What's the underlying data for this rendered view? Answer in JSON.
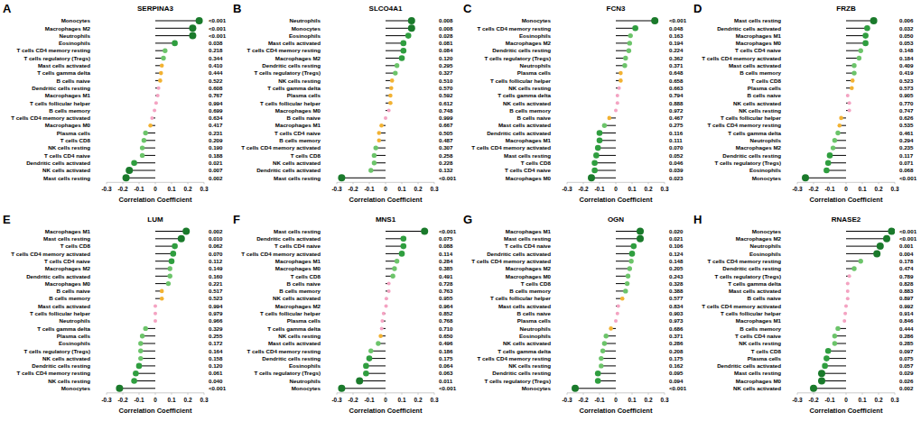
{
  "chart_data": [
    {
      "type": "lollipop",
      "orientation": "horizontal",
      "label": "A",
      "title": "SERPINA3",
      "x_label": "Correlation Coefficient",
      "xlim": [
        -0.3,
        0.3
      ],
      "xticks": [
        -0.3,
        -0.2,
        -0.1,
        0,
        0.1,
        0.2,
        0.3
      ],
      "categories": [
        "Monocytes",
        "Macrophages M2",
        "Neutrophils",
        "Eosinophils",
        "T cells CD4 memory resting",
        "T cells regulatory (Tregs)",
        "Mast cells activated",
        "T cells gamma delta",
        "B cells naive",
        "Dendritic cells resting",
        "Macrophages M1",
        "T cells follicular helper",
        "B cells memory",
        "T cells CD4 memory activated",
        "Macrophages M0",
        "Plasma cells",
        "T cells CD8",
        "NK cells resting",
        "T cells CD4 naive",
        "Dendritic cells activated",
        "NK cells activated",
        "Mast cells resting"
      ],
      "values": [
        0.27,
        0.23,
        0.23,
        0.12,
        0.06,
        0.05,
        0.04,
        0.035,
        0.03,
        0.02,
        0.015,
        0.005,
        -0.005,
        -0.02,
        -0.03,
        -0.06,
        -0.07,
        -0.08,
        -0.08,
        -0.13,
        -0.16,
        -0.18
      ],
      "p_values": [
        "<0.001",
        "<0.001",
        "<0.001",
        "0.038",
        "0.218",
        "0.344",
        "0.410",
        "0.444",
        "0.522",
        "0.608",
        "0.767",
        "0.994",
        "0.699",
        "0.634",
        "0.417",
        "0.231",
        "0.209",
        "0.190",
        "0.188",
        "0.021",
        "0.007",
        "0.002"
      ]
    },
    {
      "type": "lollipop",
      "orientation": "horizontal",
      "label": "B",
      "title": "SLCO4A1",
      "x_label": "Correlation Coefficient",
      "xlim": [
        -0.3,
        0.3
      ],
      "xticks": [
        -0.3,
        -0.2,
        -0.1,
        0,
        0.1,
        0.2,
        0.3
      ],
      "categories": [
        "Neutrophils",
        "Monocytes",
        "Eosinophils",
        "Mast cells activated",
        "T cells CD4 memory resting",
        "Macrophages M2",
        "Dendritic cells resting",
        "T cells regulatory (Tregs)",
        "NK cells resting",
        "T cells gamma delta",
        "Plasma cells",
        "T cells follicular helper",
        "Macrophages M0",
        "B cells naive",
        "Macrophages M1",
        "T cells CD4 naive",
        "B cells memory",
        "T cells CD4 memory activated",
        "T cells CD8",
        "NK cells activated",
        "Dendritic cells activated",
        "Mast cells resting"
      ],
      "values": [
        0.16,
        0.16,
        0.14,
        0.11,
        0.11,
        0.1,
        0.07,
        0.06,
        0.04,
        0.035,
        0.03,
        0.03,
        0.02,
        0.0,
        -0.025,
        -0.04,
        -0.04,
        -0.06,
        -0.07,
        -0.07,
        -0.09,
        -0.27
      ],
      "p_values": [
        "0.008",
        "0.008",
        "0.028",
        "0.081",
        "0.084",
        "0.120",
        "0.295",
        "0.327",
        "0.510",
        "0.570",
        "0.592",
        "0.612",
        "0.748",
        "0.999",
        "0.667",
        "0.505",
        "0.487",
        "0.307",
        "0.258",
        "0.228",
        "0.132",
        "<0.001"
      ]
    },
    {
      "type": "lollipop",
      "orientation": "horizontal",
      "label": "C",
      "title": "FCN3",
      "x_label": "Correlation Coefficient",
      "xlim": [
        -0.3,
        0.3
      ],
      "xticks": [
        -0.3,
        -0.2,
        -0.1,
        0,
        0.1,
        0.2,
        0.3
      ],
      "categories": [
        "Monocytes",
        "T cells CD4 memory resting",
        "Eosinophils",
        "Macrophages M2",
        "Dendritic cells resting",
        "T cells regulatory (Tregs)",
        "Neutrophils",
        "Plasma cells",
        "T cells follicular helper",
        "NK cells resting",
        "T cells gamma delta",
        "NK cells activated",
        "B cells memory",
        "B cells naive",
        "Mast cells activated",
        "Dendritic cells activated",
        "Macrophages M1",
        "T cells CD4 memory activated",
        "Mast cells resting",
        "T cells CD8",
        "T cells CD4 naive",
        "Macrophages M0"
      ],
      "values": [
        0.24,
        0.12,
        0.09,
        0.085,
        0.08,
        0.06,
        0.055,
        0.03,
        0.03,
        0.02,
        0.01,
        0.01,
        0.0,
        -0.04,
        -0.07,
        -0.1,
        -0.1,
        -0.11,
        -0.12,
        -0.13,
        -0.13,
        -0.15
      ],
      "p_values": [
        "<0.001",
        "0.048",
        "0.163",
        "0.194",
        "0.224",
        "0.362",
        "0.371",
        "0.648",
        "0.658",
        "0.663",
        "0.794",
        "0.888",
        "0.972",
        "0.467",
        "0.275",
        "0.116",
        "0.111",
        "0.070",
        "0.052",
        "0.046",
        "0.039",
        "0.023"
      ]
    },
    {
      "type": "lollipop",
      "orientation": "horizontal",
      "label": "D",
      "title": "FRZB",
      "x_label": "Correlation Coefficient",
      "xlim": [
        -0.3,
        0.3
      ],
      "xticks": [
        -0.3,
        -0.2,
        -0.1,
        0,
        0.1,
        0.2,
        0.3
      ],
      "categories": [
        "Mast cells resting",
        "Dendritic cells activated",
        "Macrophages M1",
        "Macrophages M0",
        "T cells CD4 naive",
        "T cells CD4 memory activated",
        "Mast cells activated",
        "B cells memory",
        "T cells CD8",
        "Plasma cells",
        "B cells naive",
        "NK cells activated",
        "NK cells resting",
        "T cells follicular helper",
        "T cells CD4 memory resting",
        "T cells gamma delta",
        "Neutrophils",
        "Macrophages M2",
        "Dendritic cells resting",
        "T cells regulatory (Tregs)",
        "Eosinophils",
        "Monocytes"
      ],
      "values": [
        0.17,
        0.13,
        0.12,
        0.12,
        0.09,
        0.08,
        0.05,
        0.05,
        0.04,
        0.035,
        0.01,
        0.02,
        0.02,
        -0.03,
        -0.04,
        -0.05,
        -0.07,
        -0.08,
        -0.1,
        -0.11,
        -0.12,
        -0.25
      ],
      "p_values": [
        "0.006",
        "0.032",
        "0.050",
        "0.053",
        "0.148",
        "0.184",
        "0.409",
        "0.419",
        "0.523",
        "0.573",
        "0.905",
        "0.770",
        "0.747",
        "0.626",
        "0.535",
        "0.461",
        "0.294",
        "0.235",
        "0.117",
        "0.071",
        "0.068",
        "<0.001"
      ]
    },
    {
      "type": "lollipop",
      "orientation": "horizontal",
      "label": "E",
      "title": "LUM",
      "x_label": "Correlation Coefficient",
      "xlim": [
        -0.3,
        0.3
      ],
      "xticks": [
        -0.3,
        -0.2,
        -0.1,
        0,
        0.1,
        0.2,
        0.3
      ],
      "categories": [
        "Macrophages M1",
        "Mast cells resting",
        "T cells CD8",
        "T cells CD4 memory activated",
        "T cells CD4 naive",
        "Macrophages M2",
        "Dendritic cells activated",
        "Macrophages M0",
        "B cells naive",
        "B cells memory",
        "Mast cells activated",
        "T cells follicular helper",
        "Neutrophils",
        "T cells gamma delta",
        "Plasma cells",
        "Eosinophils",
        "T cells regulatory (Tregs)",
        "NK cells activated",
        "Dendritic cells resting",
        "T cells CD4 memory resting",
        "NK cells resting",
        "Monocytes"
      ],
      "values": [
        0.19,
        0.16,
        0.12,
        0.11,
        0.1,
        0.09,
        0.09,
        0.08,
        0.04,
        0.04,
        0.0,
        0.0,
        0.0,
        -0.06,
        -0.08,
        -0.09,
        -0.09,
        -0.09,
        -0.1,
        -0.12,
        -0.13,
        -0.22
      ],
      "p_values": [
        "0.002",
        "0.010",
        "0.062",
        "0.070",
        "0.112",
        "0.149",
        "0.160",
        "0.221",
        "0.517",
        "0.523",
        "0.994",
        "0.979",
        "0.966",
        "0.329",
        "0.255",
        "0.172",
        "0.164",
        "0.158",
        "0.120",
        "0.061",
        "0.040",
        "<0.001"
      ]
    },
    {
      "type": "lollipop",
      "orientation": "horizontal",
      "label": "F",
      "title": "MNS1",
      "x_label": "Correlation Coefficient",
      "xlim": [
        -0.3,
        0.3
      ],
      "xticks": [
        -0.3,
        -0.2,
        -0.1,
        0,
        0.1,
        0.2,
        0.3
      ],
      "categories": [
        "Mast cells resting",
        "Dendritic cells activated",
        "T cells CD4 naive",
        "T cells CD4 memory activated",
        "Macrophages M1",
        "Macrophages M0",
        "T cells CD8",
        "B cells naive",
        "B cells memory",
        "NK cells activated",
        "Macrophages M2",
        "T cells follicular helper",
        "Plasma cells",
        "T cells gamma delta",
        "NK cells resting",
        "Mast cells activated",
        "T cells CD4 memory resting",
        "Dendritic cells resting",
        "Eosinophils",
        "T cells regulatory (Tregs)",
        "Neutrophils",
        "Monocytes"
      ],
      "values": [
        0.24,
        0.11,
        0.11,
        0.1,
        0.07,
        0.055,
        0.045,
        0.02,
        0.02,
        0.005,
        0.003,
        -0.012,
        -0.02,
        -0.024,
        -0.03,
        -0.045,
        -0.09,
        -0.1,
        -0.12,
        -0.12,
        -0.16,
        -0.27
      ],
      "p_values": [
        "<0.001",
        "0.075",
        "0.088",
        "0.114",
        "0.284",
        "0.385",
        "0.491",
        "0.728",
        "0.763",
        "0.955",
        "0.964",
        "0.852",
        "0.768",
        "0.710",
        "0.650",
        "0.496",
        "0.186",
        "0.175",
        "0.064",
        "0.063",
        "0.011",
        "<0.001"
      ]
    },
    {
      "type": "lollipop",
      "orientation": "horizontal",
      "label": "G",
      "title": "OGN",
      "x_label": "Correlation Coefficient",
      "xlim": [
        -0.3,
        0.3
      ],
      "xticks": [
        -0.3,
        -0.2,
        -0.1,
        0,
        0.1,
        0.2,
        0.3
      ],
      "categories": [
        "Macrophages M1",
        "Mast cells resting",
        "T cells CD4 naive",
        "Dendritic cells activated",
        "T cells CD4 memory activated",
        "Macrophages M2",
        "Macrophages M0",
        "T cells CD8",
        "B cells memory",
        "T cells follicular helper",
        "Mast cells activated",
        "B cells naive",
        "Plasma cells",
        "Neutrophils",
        "Eosinophils",
        "NK cells activated",
        "T cells gamma delta",
        "T cells CD4 memory resting",
        "NK cells resting",
        "Dendritic cells resting",
        "T cells regulatory (Tregs)",
        "Monocytes"
      ],
      "values": [
        0.15,
        0.15,
        0.11,
        0.1,
        0.095,
        0.085,
        0.075,
        0.07,
        0.06,
        0.04,
        0.015,
        0.01,
        0.0,
        -0.03,
        -0.06,
        -0.07,
        -0.08,
        -0.09,
        -0.09,
        -0.11,
        -0.11,
        -0.25
      ],
      "p_values": [
        "0.020",
        "0.021",
        "0.106",
        "0.124",
        "0.148",
        "0.205",
        "0.243",
        "0.328",
        "0.388",
        "0.577",
        "0.834",
        "0.903",
        "0.973",
        "0.686",
        "0.371",
        "0.286",
        "0.208",
        "0.175",
        "0.162",
        "0.095",
        "0.094",
        "<0.001"
      ]
    },
    {
      "type": "lollipop",
      "orientation": "horizontal",
      "label": "H",
      "title": "RNASE2",
      "x_label": "Correlation Coefficient",
      "xlim": [
        -0.3,
        0.3
      ],
      "xticks": [
        -0.3,
        -0.2,
        -0.1,
        0,
        0.1,
        0.2,
        0.3
      ],
      "categories": [
        "Monocytes",
        "Macrophages M2",
        "Neutrophils",
        "Eosinophils",
        "T cells CD4 memory resting",
        "Dendritic cells resting",
        "T cells regulatory (Tregs)",
        "T cells gamma delta",
        "Mast cells activated",
        "B cells naive",
        "T cells CD4 memory activated",
        "T cells follicular helper",
        "Macrophages M1",
        "B cells memory",
        "T cells CD4 naive",
        "NK cells resting",
        "T cells CD8",
        "Plasma cells",
        "Dendritic cells activated",
        "Mast cells resting",
        "Macrophages M0",
        "NK cells activated"
      ],
      "values": [
        0.28,
        0.25,
        0.21,
        0.19,
        0.09,
        0.05,
        0.02,
        0.01,
        0.01,
        0.01,
        0.0,
        -0.005,
        -0.01,
        -0.05,
        -0.07,
        -0.07,
        -0.11,
        -0.12,
        -0.13,
        -0.15,
        -0.15,
        -0.2
      ],
      "p_values": [
        "<0.001",
        "<0.001",
        "0.001",
        "0.004",
        "0.178",
        "0.474",
        "0.789",
        "0.828",
        "0.883",
        "0.897",
        "0.992",
        "0.914",
        "0.846",
        "0.444",
        "0.286",
        "0.285",
        "0.097",
        "0.075",
        "0.057",
        "0.029",
        "0.026",
        "0.002"
      ]
    }
  ]
}
